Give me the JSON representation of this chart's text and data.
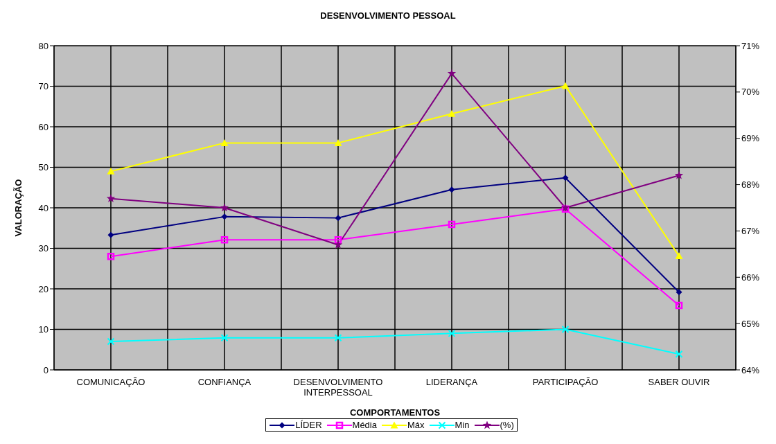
{
  "chart_data": {
    "type": "line",
    "title": "DESENVOLVIMENTO PESSOAL",
    "xlabel": "COMPORTAMENTOS",
    "ylabel": "VALORAÇÃO",
    "categories": [
      "COMUNICAÇÃO",
      "CONFIANÇA",
      "DESENVOLVIMENTO INTERPESSOAL",
      "LIDERANÇA",
      "PARTICIPAÇÃO",
      "SABER OUVIR"
    ],
    "series": [
      {
        "name": "LÍDER",
        "color": "#000080",
        "marker": "diamond",
        "values": [
          33.3,
          37.8,
          37.5,
          44.5,
          47.4,
          19.2
        ]
      },
      {
        "name": "Média",
        "color": "#ff00ff",
        "marker": "square",
        "values": [
          28,
          32.1,
          32.1,
          35.9,
          39.7,
          15.9
        ]
      },
      {
        "name": "Máx",
        "color": "#ffff00",
        "marker": "triangle",
        "values": [
          49,
          56,
          56,
          63.2,
          70.1,
          28.1
        ]
      },
      {
        "name": "Min",
        "color": "#00ffff",
        "marker": "cross",
        "values": [
          7,
          7.9,
          7.9,
          9,
          10,
          3.9
        ]
      },
      {
        "name": "(%)",
        "color": "#800080",
        "marker": "star",
        "axis": "y2",
        "values": [
          67.7,
          67.5,
          66.7,
          70.4,
          67.5,
          68.2
        ]
      }
    ],
    "ylim": [
      0,
      80
    ],
    "yticks": [
      0,
      10,
      20,
      30,
      40,
      50,
      60,
      70,
      80
    ],
    "y2lim": [
      64,
      71
    ],
    "y2ticks": [
      {
        "value": 64,
        "label": "64%"
      },
      {
        "value": 65,
        "label": "65%"
      },
      {
        "value": 66,
        "label": "66%"
      },
      {
        "value": 67,
        "label": "67%"
      },
      {
        "value": 68,
        "label": "68%"
      },
      {
        "value": 69,
        "label": "69%"
      },
      {
        "value": 70,
        "label": "70%"
      },
      {
        "value": 71,
        "label": "71%"
      }
    ],
    "grid": true,
    "legend": "bottom"
  }
}
